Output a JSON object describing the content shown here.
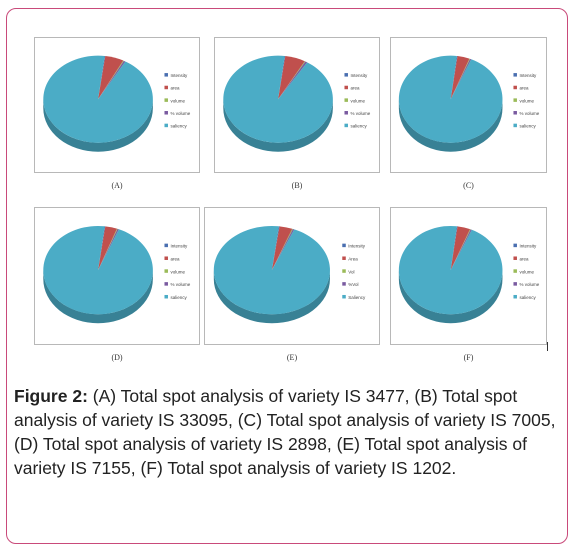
{
  "figure": {
    "caption_label": "Figure 2:",
    "caption_text": " (A) Total spot analysis of variety IS 3477, (B) Total spot analysis of variety IS 33095, (C) Total spot analysis of variety IS 7005, (D) Total spot analysis of variety IS 2898, (E) Total spot analysis of variety IS 7155, (F) Total spot analysis of variety IS 1202."
  },
  "chart_data": [
    {
      "type": "pie",
      "panel": "(A)",
      "categories": [
        "Intensity",
        "area",
        "volume",
        "% volume",
        "saliency"
      ],
      "values": [
        0.2,
        5.5,
        0.2,
        0.5,
        93.6
      ],
      "colors": [
        "#4a6fb0",
        "#c0504d",
        "#9bbb59",
        "#7a5ba0",
        "#4bacc6"
      ],
      "legend_position": "right"
    },
    {
      "type": "pie",
      "panel": "(B)",
      "categories": [
        "Intensity",
        "area",
        "volume",
        "% volume",
        "saliency"
      ],
      "values": [
        0.2,
        6.0,
        0.2,
        0.6,
        93.0
      ],
      "colors": [
        "#4a6fb0",
        "#c0504d",
        "#9bbb59",
        "#7a5ba0",
        "#4bacc6"
      ],
      "legend_position": "right"
    },
    {
      "type": "pie",
      "panel": "(C)",
      "categories": [
        "Intensity",
        "area",
        "volume",
        "% volume",
        "saliency"
      ],
      "values": [
        0.2,
        3.8,
        0.2,
        0.4,
        95.4
      ],
      "colors": [
        "#4a6fb0",
        "#c0504d",
        "#9bbb59",
        "#7a5ba0",
        "#4bacc6"
      ],
      "legend_position": "right"
    },
    {
      "type": "pie",
      "panel": "(D)",
      "categories": [
        "Intensity",
        "area",
        "volume",
        "% volume",
        "saliency"
      ],
      "values": [
        0.2,
        3.5,
        0.2,
        0.4,
        95.7
      ],
      "colors": [
        "#4a6fb0",
        "#c0504d",
        "#9bbb59",
        "#7a5ba0",
        "#4bacc6"
      ],
      "legend_position": "right"
    },
    {
      "type": "pie",
      "panel": "(E)",
      "categories": [
        "Intensity",
        "Area",
        "Vol",
        "%Vol",
        "Saliency"
      ],
      "values": [
        0.2,
        3.6,
        0.2,
        0.4,
        95.6
      ],
      "colors": [
        "#4a6fb0",
        "#c0504d",
        "#9bbb59",
        "#7a5ba0",
        "#4bacc6"
      ],
      "legend_position": "right"
    },
    {
      "type": "pie",
      "panel": "(F)",
      "categories": [
        "Intensity",
        "area",
        "volume",
        "% volume",
        "saliency"
      ],
      "values": [
        0.2,
        4.0,
        0.2,
        0.4,
        95.2
      ],
      "colors": [
        "#4a6fb0",
        "#c0504d",
        "#9bbb59",
        "#7a5ba0",
        "#4bacc6"
      ],
      "legend_position": "right"
    }
  ]
}
